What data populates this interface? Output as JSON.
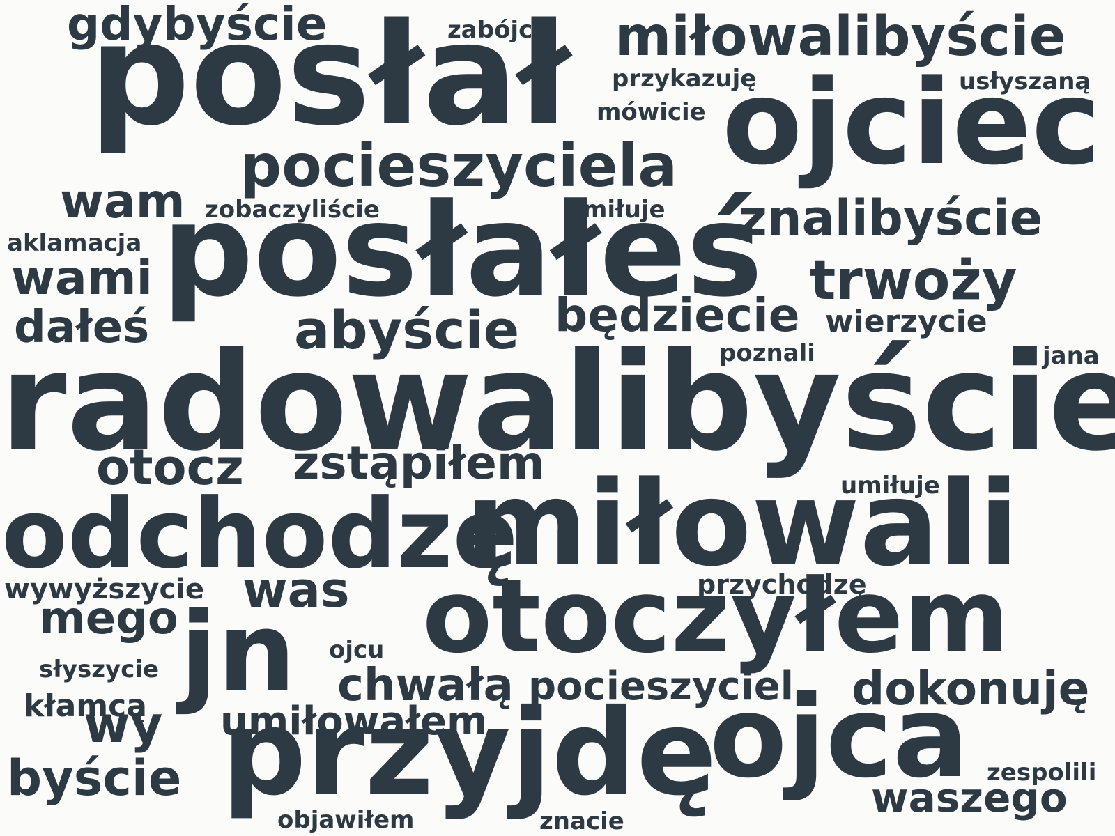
{
  "background_color": "#fbfbf9",
  "text_color": "#2d3a44",
  "words": [
    "posłał",
    "radowalibyście",
    "posłałeś",
    "miłowali",
    "otoczyłem",
    "ojciec",
    "odchodzę",
    "przyjdę",
    "ojca",
    "jn",
    "pocieszyciela",
    "miłowalibyście",
    "znalibyście",
    "trwoży",
    "gdybyście",
    "wam",
    "abyście",
    "będziecie",
    "wami",
    "dałeś",
    "otocz",
    "zstąpiłem",
    "was",
    "mego",
    "chwałą",
    "pocieszyciel",
    "dokonuję",
    "umiłowałem",
    "wy",
    "byście",
    "waszego",
    "zobaczyliście",
    "aklamacja",
    "przykazuję",
    "usłyszaną",
    "mówicie",
    "zabójcą",
    "miłuje",
    "wierzycie",
    "poznali",
    "jana",
    "umiłuje",
    "wywyższycie",
    "przychodzę",
    "ojcu",
    "słyszycie",
    "kłamcą",
    "zespolili",
    "objawiłem",
    "znacie"
  ]
}
